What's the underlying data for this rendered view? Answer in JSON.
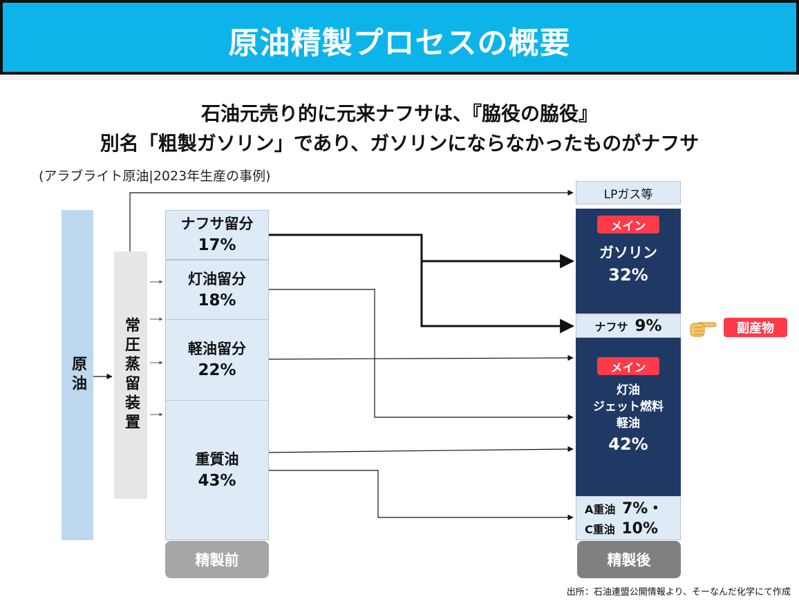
{
  "header": {
    "title": "原油精製プロセスの概要"
  },
  "subtitle": {
    "line1": "石油元売り的に元来ナフサは、『脇役の脇役』",
    "line2": "別名「粗製ガソリン」であり、ガソリンにならなかったものがナフサ"
  },
  "note": "(アラブライト原油|2023年生産の事例)",
  "crude": {
    "label": "原油"
  },
  "distiller": {
    "label": "常圧蒸留装置"
  },
  "fractions": [
    {
      "name": "ナフサ留分",
      "pct": "17%"
    },
    {
      "name": "灯油留分",
      "pct": "18%"
    },
    {
      "name": "軽油留分",
      "pct": "22%"
    },
    {
      "name": "重質油",
      "pct": "43%"
    }
  ],
  "before_label": "精製前",
  "after_label": "精製後",
  "products": {
    "lpg": "LPガス等",
    "main_badge": "メイン",
    "gasoline": {
      "name": "ガソリン",
      "pct": "32%"
    },
    "naphtha": {
      "name": "ナフサ",
      "pct": "9%"
    },
    "middle": {
      "line1": "灯油",
      "line2": "ジェット燃料",
      "line3": "軽油",
      "pct": "42%"
    },
    "heavy": {
      "a_name": "A重油",
      "a_pct": "7%・",
      "c_name": "C重油",
      "c_pct": "10%"
    }
  },
  "byproduct_label": "副産物",
  "source": "出所：石油連盟公開情報より、そーなんだ化学にて作成",
  "colors": {
    "header": "#0db4ea",
    "navy": "#203864",
    "light_blue": "#deebf7",
    "red": "#ff3b4a",
    "gray": "#a6a6a6"
  }
}
